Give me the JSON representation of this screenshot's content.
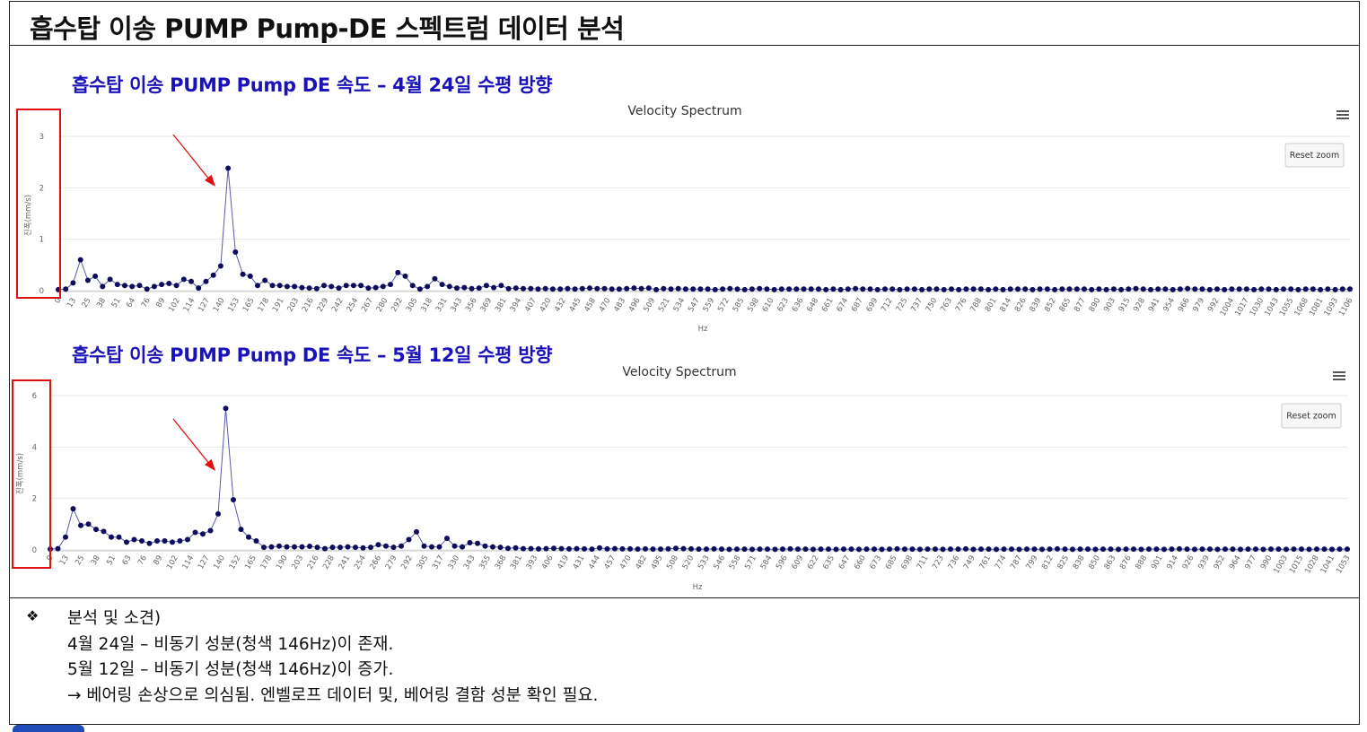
{
  "page_title": "흡수탑 이송 PUMP Pump-DE 스펙트럼 데이터 분석",
  "charts": [
    {
      "heading": "흡수탑 이송 PUMP Pump DE 속도 – 4월 24일 수평 방향",
      "title": "Velocity Spectrum",
      "reset_label": "Reset zoom",
      "xlabel": "Hz",
      "ylabel": "진폭(mm/s)",
      "y_ticks": [
        "3",
        "2",
        "1",
        "0"
      ]
    },
    {
      "heading": "흡수탑 이송 PUMP Pump DE 속도 – 5월 12일 수평 방향",
      "title": "Velocity Spectrum",
      "reset_label": "Reset zoom",
      "xlabel": "Hz",
      "ylabel": "진폭(mm/s)",
      "y_ticks": [
        "6",
        "4",
        "2",
        "0"
      ]
    }
  ],
  "chart_data": [
    {
      "type": "line",
      "title": "Velocity Spectrum",
      "xlabel": "Hz",
      "ylabel": "진폭(mm/s)",
      "ylim": [
        0,
        3
      ],
      "grid": true,
      "legend": "none",
      "series_color": "#0d0d5c",
      "tick_labels": [
        "0",
        "13",
        "25",
        "38",
        "51",
        "64",
        "76",
        "89",
        "102",
        "114",
        "127",
        "140",
        "153",
        "165",
        "178",
        "191",
        "203",
        "216",
        "229",
        "242",
        "254",
        "267",
        "280",
        "292",
        "305",
        "318",
        "331",
        "343",
        "356",
        "369",
        "381",
        "394",
        "407",
        "420",
        "432",
        "445",
        "458",
        "470",
        "483",
        "496",
        "509",
        "521",
        "534",
        "547",
        "559",
        "572",
        "585",
        "598",
        "610",
        "623",
        "636",
        "648",
        "661",
        "674",
        "687",
        "699",
        "712",
        "725",
        "737",
        "750",
        "763",
        "776",
        "788",
        "801",
        "814",
        "826",
        "839",
        "852",
        "865",
        "877",
        "890",
        "903",
        "915",
        "928",
        "941",
        "954",
        "966",
        "979",
        "992",
        "1004",
        "1017",
        "1030",
        "1043",
        "1055",
        "1068",
        "1081",
        "1093",
        "1106"
      ],
      "x_step": 6.375,
      "values": [
        0.02,
        0.03,
        0.15,
        0.6,
        0.2,
        0.28,
        0.08,
        0.22,
        0.12,
        0.1,
        0.08,
        0.1,
        0.03,
        0.08,
        0.12,
        0.14,
        0.1,
        0.22,
        0.18,
        0.05,
        0.18,
        0.3,
        0.48,
        2.38,
        0.75,
        0.32,
        0.28,
        0.1,
        0.2,
        0.1,
        0.1,
        0.08,
        0.08,
        0.06,
        0.05,
        0.04,
        0.1,
        0.08,
        0.05,
        0.1,
        0.1,
        0.1,
        0.05,
        0.06,
        0.08,
        0.12,
        0.35,
        0.28,
        0.1,
        0.03,
        0.08,
        0.23,
        0.12,
        0.08,
        0.05,
        0.06,
        0.04,
        0.05,
        0.1,
        0.06,
        0.1,
        0.04,
        0.05,
        0.04,
        0.04,
        0.03,
        0.04,
        0.03,
        0.03,
        0.04,
        0.03,
        0.04,
        0.05,
        0.04,
        0.04,
        0.03,
        0.03,
        0.04,
        0.05,
        0.04,
        0.05,
        0.02,
        0.04,
        0.03,
        0.04,
        0.03,
        0.03,
        0.03,
        0.03,
        0.02,
        0.03,
        0.04,
        0.03,
        0.02,
        0.03,
        0.04,
        0.03,
        0.02,
        0.03,
        0.03,
        0.03,
        0.03,
        0.03,
        0.03,
        0.02,
        0.03,
        0.02,
        0.03,
        0.04,
        0.03,
        0.03,
        0.02,
        0.03,
        0.03,
        0.02,
        0.03,
        0.03,
        0.02,
        0.03,
        0.03,
        0.02,
        0.03,
        0.02,
        0.03,
        0.03,
        0.03,
        0.02,
        0.03,
        0.02,
        0.03,
        0.03,
        0.03,
        0.02,
        0.03,
        0.03,
        0.02,
        0.03,
        0.03,
        0.03,
        0.03,
        0.02,
        0.03,
        0.02,
        0.03,
        0.02,
        0.03,
        0.04,
        0.03,
        0.02,
        0.03,
        0.03,
        0.02,
        0.03,
        0.04,
        0.03,
        0.03,
        0.02,
        0.03,
        0.02,
        0.03,
        0.03,
        0.03,
        0.02,
        0.03,
        0.03,
        0.02,
        0.03,
        0.03,
        0.02,
        0.03,
        0.03,
        0.02,
        0.03,
        0.02,
        0.03,
        0.03
      ]
    },
    {
      "type": "line",
      "title": "Velocity Spectrum",
      "xlabel": "Hz",
      "ylabel": "진폭(mm/s)",
      "ylim": [
        0,
        6
      ],
      "grid": true,
      "legend": "none",
      "series_color": "#0d0d5c",
      "tick_labels": [
        "0",
        "13",
        "25",
        "38",
        "51",
        "63",
        "76",
        "89",
        "102",
        "114",
        "127",
        "140",
        "152",
        "165",
        "178",
        "190",
        "203",
        "216",
        "228",
        "241",
        "254",
        "266",
        "279",
        "292",
        "305",
        "317",
        "330",
        "343",
        "355",
        "368",
        "381",
        "393",
        "406",
        "419",
        "431",
        "444",
        "457",
        "470",
        "482",
        "495",
        "508",
        "520",
        "533",
        "546",
        "558",
        "571",
        "584",
        "596",
        "609",
        "622",
        "635",
        "647",
        "660",
        "673",
        "685",
        "698",
        "711",
        "723",
        "736",
        "749",
        "761",
        "774",
        "787",
        "799",
        "812",
        "825",
        "838",
        "850",
        "863",
        "876",
        "888",
        "901",
        "914",
        "926",
        "939",
        "952",
        "964",
        "977",
        "990",
        "1003",
        "1015",
        "1028",
        "1041",
        "1053"
      ],
      "x_step": 6.33,
      "values": [
        0.03,
        0.05,
        0.5,
        1.6,
        0.95,
        1.0,
        0.8,
        0.72,
        0.5,
        0.5,
        0.3,
        0.4,
        0.35,
        0.25,
        0.35,
        0.35,
        0.3,
        0.35,
        0.4,
        0.68,
        0.62,
        0.75,
        1.4,
        5.5,
        1.95,
        0.8,
        0.5,
        0.35,
        0.1,
        0.12,
        0.15,
        0.12,
        0.12,
        0.12,
        0.14,
        0.1,
        0.05,
        0.1,
        0.1,
        0.12,
        0.1,
        0.08,
        0.1,
        0.2,
        0.15,
        0.1,
        0.15,
        0.4,
        0.7,
        0.15,
        0.12,
        0.12,
        0.45,
        0.15,
        0.12,
        0.28,
        0.25,
        0.15,
        0.12,
        0.1,
        0.06,
        0.08,
        0.05,
        0.05,
        0.04,
        0.05,
        0.06,
        0.05,
        0.04,
        0.05,
        0.04,
        0.03,
        0.08,
        0.04,
        0.05,
        0.04,
        0.04,
        0.03,
        0.04,
        0.03,
        0.03,
        0.04,
        0.06,
        0.05,
        0.04,
        0.03,
        0.03,
        0.04,
        0.03,
        0.02,
        0.03,
        0.03,
        0.02,
        0.03,
        0.03,
        0.02,
        0.03,
        0.04,
        0.03,
        0.03,
        0.02,
        0.03,
        0.03,
        0.02,
        0.03,
        0.03,
        0.02,
        0.03,
        0.03,
        0.02,
        0.03,
        0.04,
        0.03,
        0.03,
        0.02,
        0.03,
        0.03,
        0.02,
        0.03,
        0.03,
        0.04,
        0.02,
        0.03,
        0.03,
        0.02,
        0.03,
        0.03,
        0.02,
        0.03,
        0.03,
        0.02,
        0.03,
        0.04,
        0.03,
        0.02,
        0.03,
        0.03,
        0.02,
        0.03,
        0.03,
        0.02,
        0.03,
        0.03,
        0.02,
        0.03,
        0.03,
        0.02,
        0.03,
        0.04,
        0.03,
        0.02,
        0.03,
        0.03,
        0.02,
        0.03,
        0.03,
        0.02,
        0.03,
        0.03,
        0.02,
        0.03,
        0.03,
        0.02,
        0.03,
        0.03,
        0.02,
        0.03,
        0.03,
        0.02,
        0.03,
        0.03
      ]
    }
  ],
  "analysis": {
    "bullet_symbol": "❖",
    "title": "분석 및 소견)",
    "lines": [
      "4월 24일 – 비동기 성분(청색 146Hz)이 존재.",
      "5월 12일 – 비동기 성분(청색 146Hz)이 증가.",
      "→ 베어링 손상으로 의심됨. 엔벨로프 데이터 및, 베어링 결함 성분 확인 필요."
    ]
  },
  "colors": {
    "heading": "#1a14b8",
    "series": "#0d0d5c",
    "annotation": "#e01010"
  }
}
